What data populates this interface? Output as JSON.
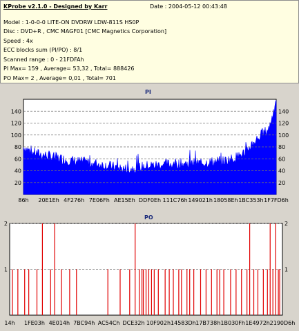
{
  "header": {
    "title": "KProbe v2.1.0 - Designed by Karr",
    "date": "Date : 2004-05-12 00:43:48",
    "model": "Model : 1-0-0-0 LITE-ON DVDRW LDW-811S   HS0P",
    "disc": "Disc : DVD+R , CMC MAGF01 [CMC Magnetics Corporation]",
    "speed": "Speed : 4x",
    "ecc": "ECC blocks sum (PI/PO) : 8/1",
    "range": "Scanned range : 0 - 21FDFAh",
    "pi_stats": "PI Max= 159 , Average= 53,32 , Total= 888426",
    "po_stats": "PO Max= 2 , Average= 0,01 , Total= 701"
  },
  "colors": {
    "background": "#d8d4cc",
    "plot_bg": "#ffffff",
    "pi_fill": "#0000ff",
    "po_line": "#e00000",
    "grid": "#707070",
    "header_bg": "#fffee1"
  },
  "chart_data": [
    {
      "type": "area",
      "title": "PI",
      "ylim": [
        0,
        160
      ],
      "yticks": [
        "20",
        "40",
        "60",
        "80",
        "100",
        "120",
        "140"
      ],
      "xticks": [
        "86h",
        "20E1Eh",
        "4F276h",
        "7E06Fh",
        "AE15Eh",
        "DDF0Eh",
        "111C76h",
        "149021h",
        "18058Eh",
        "1BC353h",
        "1F7FD6h"
      ],
      "grid": "dashed horizontal",
      "profile_x": [
        0,
        0.03,
        0.06,
        0.1,
        0.15,
        0.2,
        0.25,
        0.3,
        0.35,
        0.4,
        0.45,
        0.5,
        0.55,
        0.6,
        0.65,
        0.7,
        0.75,
        0.8,
        0.84,
        0.88,
        0.91,
        0.94,
        0.97,
        0.99,
        1.0
      ],
      "profile_y": [
        80,
        72,
        68,
        65,
        60,
        56,
        54,
        51,
        47,
        43,
        45,
        49,
        50,
        52,
        52,
        53,
        55,
        57,
        62,
        72,
        88,
        100,
        110,
        140,
        150
      ]
    },
    {
      "type": "bar",
      "title": "PO",
      "ylim": [
        0,
        2
      ],
      "yticks": [
        "1",
        "2"
      ],
      "xticks": [
        "14h",
        "1FE03h",
        "4E014h",
        "7BC94h",
        "AC54Ch",
        "DCE32h",
        "10F902h",
        "14583Dh",
        "17B738h",
        "1B030Fh",
        "1E4972h",
        "2190D6h"
      ],
      "grid": "dashed horizontal",
      "spikes_x_fraction": [
        0.01,
        0.03,
        0.055,
        0.07,
        0.1,
        0.12,
        0.15,
        0.165,
        0.19,
        0.22,
        0.245,
        0.36,
        0.405,
        0.44,
        0.46,
        0.475,
        0.485,
        0.49,
        0.5,
        0.51,
        0.52,
        0.53,
        0.545,
        0.57,
        0.585,
        0.6,
        0.62,
        0.63,
        0.65,
        0.66,
        0.675,
        0.7,
        0.72,
        0.74,
        0.76,
        0.77,
        0.785,
        0.81,
        0.83,
        0.85,
        0.87,
        0.88,
        0.895,
        0.91,
        0.93,
        0.945,
        0.955,
        0.965,
        0.975,
        0.985,
        0.99
      ],
      "spikes_value": [
        1,
        1,
        1,
        1,
        1,
        2,
        1,
        2,
        1,
        1,
        1,
        1,
        1,
        1,
        2,
        1,
        1,
        1,
        1,
        1,
        1,
        1,
        1,
        1,
        1,
        1,
        1,
        1,
        1,
        1,
        1,
        1,
        1,
        1,
        1,
        1,
        1,
        1,
        1,
        1,
        1,
        2,
        1,
        1,
        1,
        1,
        2,
        1,
        2,
        1,
        1
      ]
    }
  ]
}
